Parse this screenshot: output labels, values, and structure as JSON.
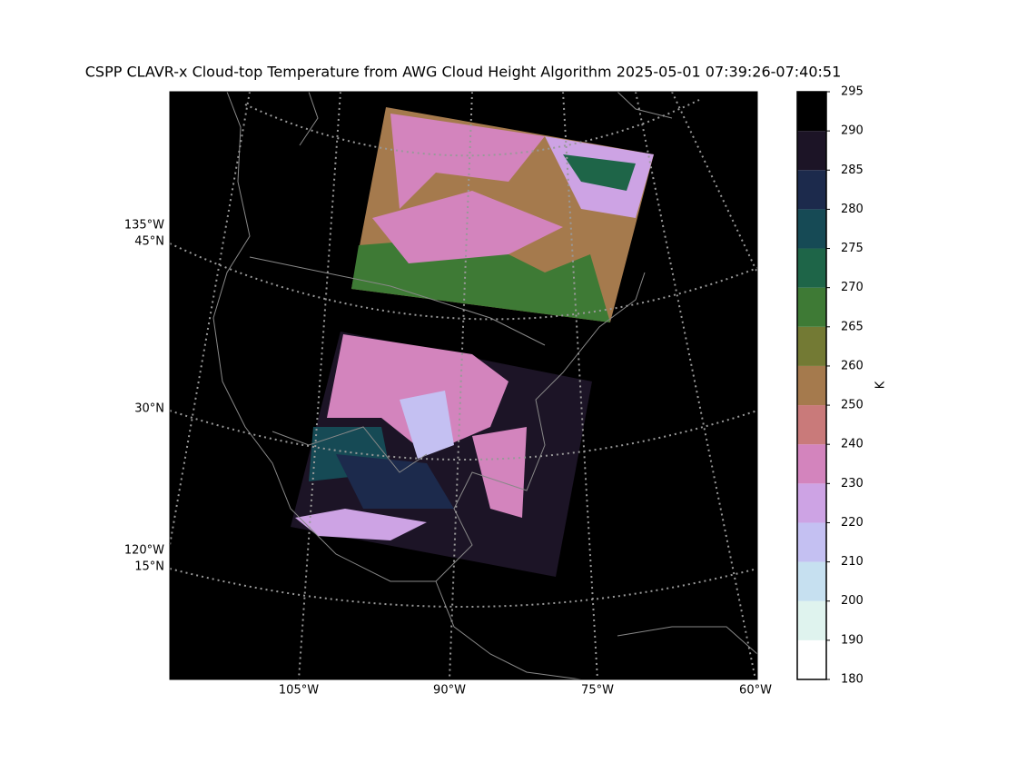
{
  "title": "CSPP CLAVR-x Cloud-top Temperature from AWG Cloud Height Algorithm 2025-05-01 07:39:26-07:40:51",
  "map": {
    "left_lon_labels": [
      "135°W",
      "120°W"
    ],
    "left_lat_labels": [
      "45°N",
      "30°N",
      "15°N"
    ],
    "bottom_lon_labels": [
      "105°W",
      "90°W",
      "75°W",
      "60°W"
    ]
  },
  "colorbar": {
    "label": "K",
    "ticks": [
      180,
      190,
      200,
      210,
      220,
      230,
      240,
      250,
      260,
      265,
      270,
      275,
      280,
      285,
      290,
      295
    ],
    "colors": [
      "#ffffff",
      "#dff3ee",
      "#c6e0f0",
      "#c4c0f2",
      "#cda3e4",
      "#d384bd",
      "#c97a7a",
      "#a57a4d",
      "#737a34",
      "#3e7a35",
      "#1e6548",
      "#164a55",
      "#1c2a4c",
      "#1c1426",
      "#000000"
    ]
  }
}
